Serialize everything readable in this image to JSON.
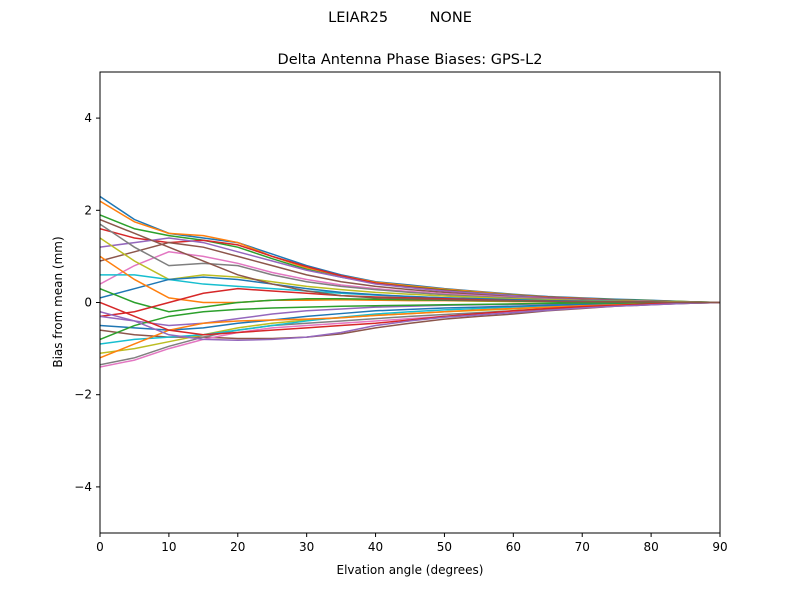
{
  "suptitle": "LEIAR25         NONE",
  "chart_data": {
    "type": "line",
    "title": "Delta Antenna Phase Biases: GPS-L2",
    "xlabel": "Elvation angle (degrees)",
    "ylabel": "Bias from mean (mm)",
    "xlim": [
      0,
      90
    ],
    "ylim": [
      -5,
      5
    ],
    "xticks": [
      0,
      10,
      20,
      30,
      40,
      50,
      60,
      70,
      80,
      90
    ],
    "yticks": [
      -4,
      -2,
      0,
      2,
      4
    ],
    "ytick_labels": [
      "−4",
      "−2",
      "0",
      "2",
      "4"
    ],
    "grid": false,
    "colors": [
      "#1f77b4",
      "#ff7f0e",
      "#2ca02c",
      "#d62728",
      "#9467bd",
      "#8c564b",
      "#e377c2",
      "#7f7f7f",
      "#bcbd22",
      "#17becf"
    ],
    "x": [
      0,
      5,
      10,
      15,
      20,
      25,
      30,
      35,
      40,
      45,
      50,
      55,
      60,
      65,
      70,
      75,
      80,
      85,
      90
    ],
    "series": [
      {
        "values": [
          2.3,
          1.8,
          1.5,
          1.4,
          1.3,
          1.05,
          0.8,
          0.6,
          0.45,
          0.38,
          0.3,
          0.24,
          0.18,
          0.13,
          0.1,
          0.07,
          0.05,
          0.02,
          0
        ]
      },
      {
        "values": [
          2.2,
          1.75,
          1.5,
          1.45,
          1.3,
          1.0,
          0.75,
          0.58,
          0.44,
          0.36,
          0.29,
          0.23,
          0.17,
          0.12,
          0.09,
          0.06,
          0.04,
          0.02,
          0
        ]
      },
      {
        "values": [
          1.9,
          1.6,
          1.45,
          1.35,
          1.2,
          0.95,
          0.72,
          0.55,
          0.42,
          0.34,
          0.27,
          0.21,
          0.16,
          0.11,
          0.08,
          0.06,
          0.04,
          0.02,
          0
        ]
      },
      {
        "values": [
          1.6,
          1.4,
          1.3,
          1.35,
          1.25,
          1.0,
          0.78,
          0.58,
          0.42,
          0.33,
          0.26,
          0.2,
          0.15,
          0.11,
          0.08,
          0.05,
          0.03,
          0.01,
          0
        ]
      },
      {
        "values": [
          1.2,
          1.3,
          1.4,
          1.3,
          1.1,
          0.9,
          0.7,
          0.55,
          0.4,
          0.32,
          0.25,
          0.2,
          0.15,
          0.1,
          0.07,
          0.05,
          0.03,
          0.01,
          0
        ]
      },
      {
        "values": [
          0.9,
          1.1,
          1.3,
          1.2,
          1.0,
          0.8,
          0.6,
          0.45,
          0.35,
          0.28,
          0.22,
          0.17,
          0.12,
          0.09,
          0.06,
          0.04,
          0.02,
          0.01,
          0
        ]
      },
      {
        "values": [
          0.4,
          0.8,
          1.1,
          1.0,
          0.85,
          0.65,
          0.5,
          0.38,
          0.3,
          0.24,
          0.19,
          0.15,
          0.11,
          0.08,
          0.05,
          0.03,
          0.02,
          0.01,
          0
        ]
      },
      {
        "values": [
          1.7,
          1.2,
          0.8,
          0.85,
          0.8,
          0.6,
          0.45,
          0.35,
          0.28,
          0.22,
          0.17,
          0.13,
          0.1,
          0.07,
          0.05,
          0.03,
          0.02,
          0.01,
          0
        ]
      },
      {
        "values": [
          1.4,
          0.9,
          0.5,
          0.6,
          0.55,
          0.45,
          0.35,
          0.28,
          0.22,
          0.18,
          0.14,
          0.11,
          0.08,
          0.06,
          0.04,
          0.03,
          0.02,
          0.01,
          0
        ]
      },
      {
        "values": [
          0.6,
          0.6,
          0.5,
          0.4,
          0.35,
          0.3,
          0.25,
          0.2,
          0.16,
          0.13,
          0.1,
          0.08,
          0.06,
          0.04,
          0.03,
          0.02,
          0.01,
          0,
          0
        ]
      },
      {
        "values": [
          0.1,
          0.3,
          0.5,
          0.55,
          0.5,
          0.4,
          0.3,
          0.22,
          0.17,
          0.13,
          0.1,
          0.08,
          0.06,
          0.04,
          0.03,
          0.02,
          0.01,
          0,
          0
        ]
      },
      {
        "values": [
          1.0,
          0.5,
          0.1,
          0.0,
          0.0,
          0.05,
          0.05,
          0.06,
          0.05,
          0.04,
          0.04,
          0.03,
          0.02,
          0.02,
          0.01,
          0.01,
          0,
          0,
          0
        ]
      },
      {
        "values": [
          0.3,
          0.0,
          -0.2,
          -0.1,
          0.0,
          0.05,
          0.08,
          0.08,
          0.07,
          0.06,
          0.05,
          0.04,
          0.03,
          0.02,
          0.01,
          0.01,
          0,
          0,
          0
        ]
      },
      {
        "values": [
          -0.3,
          -0.2,
          0.0,
          0.2,
          0.3,
          0.25,
          0.2,
          0.15,
          0.12,
          0.1,
          0.08,
          0.06,
          0.04,
          0.03,
          0.02,
          0.01,
          0.01,
          0,
          0
        ]
      },
      {
        "values": [
          -0.3,
          -0.4,
          -0.5,
          -0.45,
          -0.35,
          -0.25,
          -0.18,
          -0.14,
          -0.1,
          -0.08,
          -0.06,
          -0.05,
          -0.04,
          -0.03,
          -0.02,
          -0.01,
          -0.01,
          0,
          0
        ]
      },
      {
        "values": [
          -0.6,
          -0.7,
          -0.75,
          -0.75,
          -0.78,
          -0.78,
          -0.75,
          -0.68,
          -0.55,
          -0.45,
          -0.36,
          -0.3,
          -0.25,
          -0.18,
          -0.13,
          -0.08,
          -0.05,
          -0.02,
          0
        ]
      },
      {
        "values": [
          -1.4,
          -1.25,
          -1.0,
          -0.8,
          -0.65,
          -0.55,
          -0.5,
          -0.45,
          -0.4,
          -0.35,
          -0.3,
          -0.25,
          -0.2,
          -0.15,
          -0.1,
          -0.07,
          -0.04,
          -0.02,
          0
        ]
      },
      {
        "values": [
          -1.35,
          -1.2,
          -0.95,
          -0.75,
          -0.6,
          -0.5,
          -0.45,
          -0.4,
          -0.35,
          -0.3,
          -0.26,
          -0.22,
          -0.18,
          -0.14,
          -0.1,
          -0.07,
          -0.04,
          -0.02,
          0
        ]
      },
      {
        "values": [
          -1.1,
          -1.0,
          -0.85,
          -0.7,
          -0.55,
          -0.45,
          -0.38,
          -0.33,
          -0.28,
          -0.24,
          -0.2,
          -0.17,
          -0.14,
          -0.1,
          -0.07,
          -0.05,
          -0.03,
          -0.01,
          0
        ]
      },
      {
        "values": [
          -0.9,
          -0.8,
          -0.75,
          -0.7,
          -0.6,
          -0.5,
          -0.4,
          -0.32,
          -0.25,
          -0.2,
          -0.16,
          -0.13,
          -0.1,
          -0.07,
          -0.05,
          -0.03,
          -0.02,
          -0.01,
          0
        ]
      },
      {
        "values": [
          -0.5,
          -0.55,
          -0.6,
          -0.55,
          -0.45,
          -0.38,
          -0.3,
          -0.24,
          -0.18,
          -0.15,
          -0.12,
          -0.1,
          -0.08,
          -0.06,
          -0.04,
          -0.03,
          -0.02,
          -0.01,
          0
        ]
      },
      {
        "values": [
          -1.2,
          -0.9,
          -0.6,
          -0.45,
          -0.4,
          -0.38,
          -0.36,
          -0.33,
          -0.28,
          -0.24,
          -0.2,
          -0.16,
          -0.13,
          -0.1,
          -0.07,
          -0.05,
          -0.03,
          -0.01,
          0
        ]
      },
      {
        "values": [
          -0.8,
          -0.5,
          -0.3,
          -0.2,
          -0.15,
          -0.12,
          -0.1,
          -0.08,
          -0.07,
          -0.06,
          -0.05,
          -0.04,
          -0.03,
          -0.02,
          -0.01,
          -0.01,
          0,
          0,
          0
        ]
      },
      {
        "values": [
          0.0,
          -0.3,
          -0.6,
          -0.7,
          -0.65,
          -0.6,
          -0.55,
          -0.5,
          -0.45,
          -0.38,
          -0.3,
          -0.24,
          -0.18,
          -0.13,
          -0.09,
          -0.06,
          -0.03,
          -0.01,
          0
        ]
      },
      {
        "values": [
          -0.2,
          -0.4,
          -0.7,
          -0.8,
          -0.82,
          -0.8,
          -0.75,
          -0.65,
          -0.5,
          -0.4,
          -0.32,
          -0.27,
          -0.22,
          -0.17,
          -0.12,
          -0.08,
          -0.05,
          -0.02,
          0
        ]
      },
      {
        "values": [
          1.8,
          1.5,
          1.2,
          0.9,
          0.6,
          0.4,
          0.25,
          0.15,
          0.1,
          0.08,
          0.06,
          0.05,
          0.04,
          0.03,
          0.02,
          0.01,
          0.01,
          0,
          0
        ]
      }
    ]
  }
}
